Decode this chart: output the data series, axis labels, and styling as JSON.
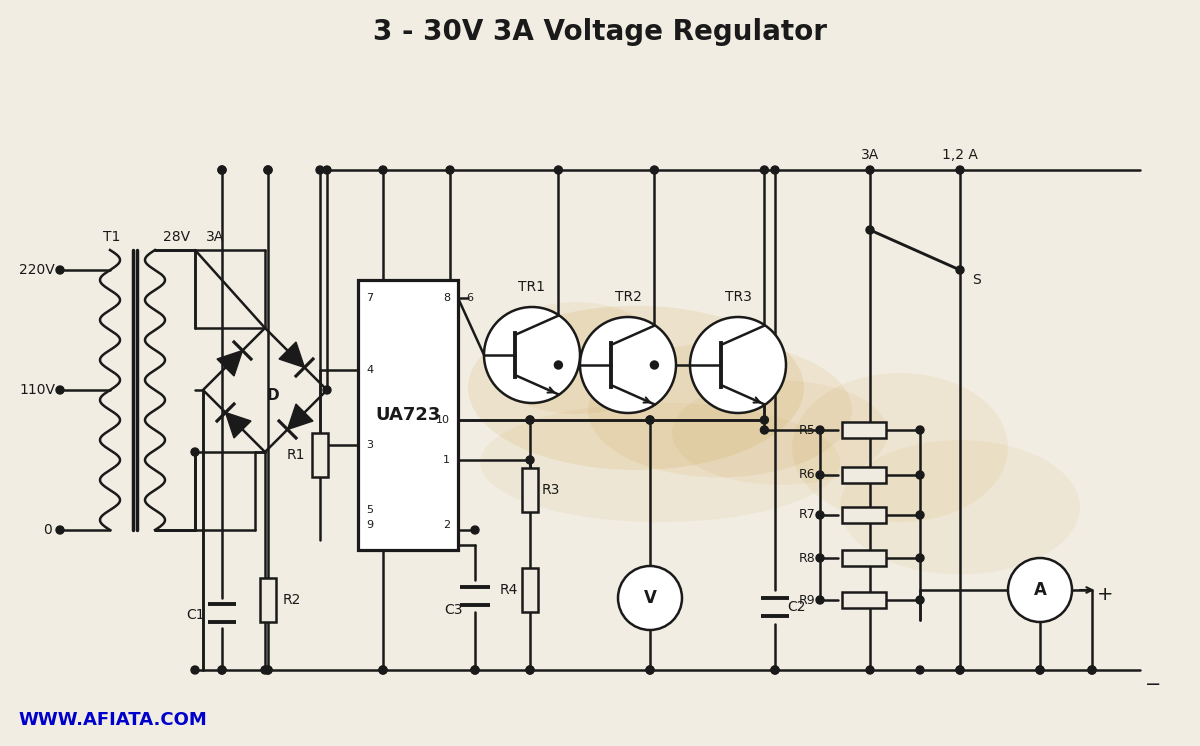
{
  "title": "3 - 30V 3A Voltage Regulator",
  "title_fontsize": 20,
  "bg_color": "#f2ede2",
  "line_color": "#1a1a1a",
  "line_width": 1.8,
  "url_text": "WWW.AFIATA.COM",
  "url_color": "#0000cc",
  "url_fontsize": 13,
  "stains": [
    [
      0.53,
      0.52,
      0.28,
      0.22,
      0.13
    ],
    [
      0.6,
      0.55,
      0.22,
      0.18,
      0.1
    ],
    [
      0.48,
      0.48,
      0.15,
      0.15,
      0.09
    ],
    [
      0.65,
      0.58,
      0.18,
      0.14,
      0.08
    ],
    [
      0.55,
      0.62,
      0.3,
      0.16,
      0.07
    ],
    [
      0.75,
      0.6,
      0.18,
      0.2,
      0.09
    ],
    [
      0.8,
      0.68,
      0.2,
      0.18,
      0.07
    ]
  ]
}
